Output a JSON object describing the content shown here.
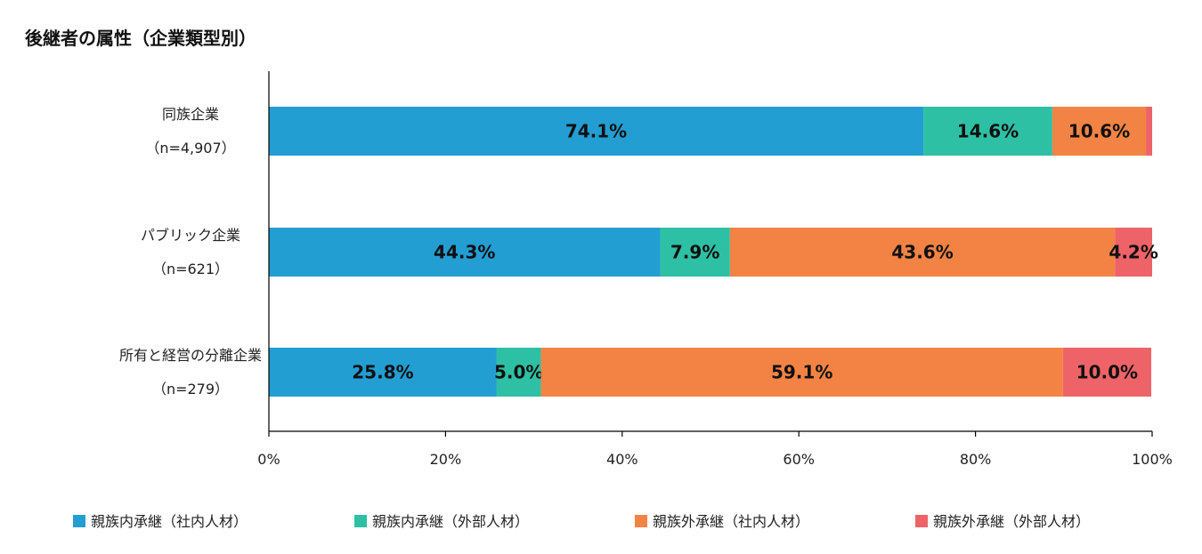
{
  "chart_data": {
    "type": "bar",
    "orientation": "horizontal",
    "stacked": true,
    "title": "後継者の属性（企業類型別）",
    "categories": [
      {
        "name": "同族企業",
        "n": "（n=4,907）"
      },
      {
        "name": "パブリック企業",
        "n": "（n=621）"
      },
      {
        "name": "所有と経営の分離企業",
        "n": "（n=279）"
      }
    ],
    "series": [
      {
        "name": "親族内承継（社内人材）",
        "color": "#239ed3",
        "values": [
          74.1,
          44.3,
          25.8
        ],
        "labels": [
          "74.1%",
          "44.3%",
          "25.8%"
        ]
      },
      {
        "name": "親族内承継（外部人材）",
        "color": "#2ec0a4",
        "values": [
          14.6,
          7.9,
          5.0
        ],
        "labels": [
          "14.6%",
          "7.9%",
          "5.0%"
        ]
      },
      {
        "name": "親族外承継（社内人材）",
        "color": "#f38344",
        "values": [
          10.6,
          43.6,
          59.1
        ],
        "labels": [
          "10.6%",
          "43.6%",
          "59.1%"
        ]
      },
      {
        "name": "親族外承継（外部人材）",
        "color": "#ee6368",
        "values": [
          0.7,
          4.2,
          10.0
        ],
        "labels": [
          "",
          "4.2%",
          "10.0%"
        ]
      }
    ],
    "xlim": [
      0,
      100
    ],
    "xticks": [
      "0%",
      "20%",
      "40%",
      "60%",
      "80%",
      "100%"
    ],
    "legend_position": "bottom",
    "grid": false
  }
}
